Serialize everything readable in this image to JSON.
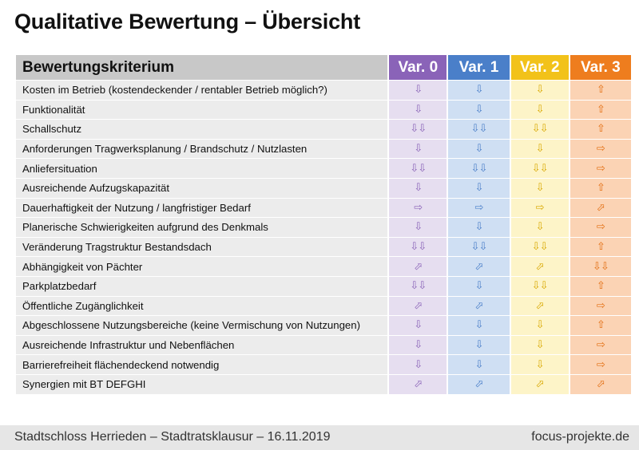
{
  "title": "Qualitative Bewertung – Übersicht",
  "header": {
    "criterion": "Bewertungskriterium",
    "variants": [
      "Var. 0",
      "Var. 1",
      "Var. 2",
      "Var. 3"
    ]
  },
  "colors": {
    "var0": "#8a63b8",
    "var1": "#4a7fc9",
    "var2": "#f2c21a",
    "var3": "#ee7d1e"
  },
  "symbol_legend": {
    "⇧": "up",
    "⇩": "down",
    "⇩⇩": "strongly down",
    "⇨": "neutral",
    "⬀": "diagonal up",
    "⬂": "diagonal down"
  },
  "rows": [
    {
      "criterion": "Kosten im Betrieb (kostendeckender / rentabler Betrieb möglich?)",
      "values": [
        "⇩",
        "⇩",
        "⇩",
        "⇧"
      ]
    },
    {
      "criterion": "Funktionalität",
      "values": [
        "⇩",
        "⇩",
        "⇩",
        "⇧"
      ]
    },
    {
      "criterion": "Schallschutz",
      "values": [
        "⇩⇩",
        "⇩⇩",
        "⇩⇩",
        "⇧"
      ]
    },
    {
      "criterion": "Anforderungen Tragwerksplanung / Brandschutz / Nutzlasten",
      "values": [
        "⇩",
        "⇩",
        "⇩",
        "⇨"
      ]
    },
    {
      "criterion": "Anliefersituation",
      "values": [
        "⇩⇩",
        "⇩⇩",
        "⇩⇩",
        "⇨"
      ]
    },
    {
      "criterion": "Ausreichende Aufzugskapazität",
      "values": [
        "⇩",
        "⇩",
        "⇩",
        "⇧"
      ]
    },
    {
      "criterion": "Dauerhaftigkeit der Nutzung / langfristiger Bedarf",
      "values": [
        "⇨",
        "⇨",
        "⇨",
        "⬀"
      ]
    },
    {
      "criterion": "Planerische Schwierigkeiten aufgrund des Denkmals",
      "values": [
        "⇩",
        "⇩",
        "⇩",
        "⇨"
      ]
    },
    {
      "criterion": "Veränderung Tragstruktur Bestandsdach",
      "values": [
        "⇩⇩",
        "⇩⇩",
        "⇩⇩",
        "⇧"
      ]
    },
    {
      "criterion": "Abhängigkeit von Pächter",
      "values": [
        "⬀",
        "⬀",
        "⬀",
        "⇩⇩"
      ]
    },
    {
      "criterion": "Parkplatzbedarf",
      "values": [
        "⇩⇩",
        "⇩",
        "⇩⇩",
        "⇧"
      ]
    },
    {
      "criterion": "Öffentliche Zugänglichkeit",
      "values": [
        "⬀",
        "⬀",
        "⬀",
        "⇨"
      ]
    },
    {
      "criterion": "Abgeschlossene Nutzungsbereiche (keine Vermischung von Nutzungen)",
      "values": [
        "⇩",
        "⇩",
        "⇩",
        "⇧"
      ]
    },
    {
      "criterion": "Ausreichende Infrastruktur und Nebenflächen",
      "values": [
        "⇩",
        "⇩",
        "⇩",
        "⇨"
      ]
    },
    {
      "criterion": "Barrierefreiheit flächendeckend notwendig",
      "values": [
        "⇩",
        "⇩",
        "⇩",
        "⇨"
      ]
    },
    {
      "criterion": "Synergien mit BT DEFGHI",
      "values": [
        "⬀",
        "⬀",
        "⬀",
        "⬀"
      ]
    }
  ],
  "footer": {
    "left": "Stadtschloss Herrieden – Stadtratsklausur – 16.11.2019",
    "right": "focus-projekte.de"
  }
}
